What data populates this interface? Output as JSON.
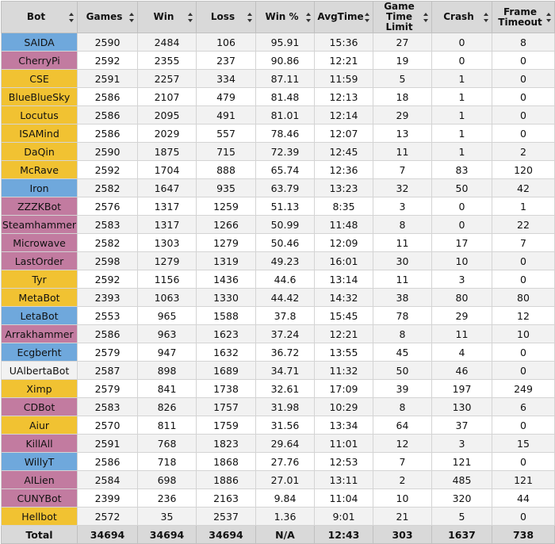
{
  "race_colors": {
    "terran": "#6fa8dc",
    "zerg": "#c27ba0",
    "protoss": "#f1c232"
  },
  "headers": [
    "Bot",
    "Games",
    "Win",
    "Loss",
    "Win %",
    "AvgTime",
    "Game Time Limit",
    "Crash",
    "Frame Timeout"
  ],
  "rows": [
    {
      "bot": "SAIDA",
      "race": "terran",
      "games": "2590",
      "win": "2484",
      "loss": "106",
      "pct": "95.91",
      "avg": "15:36",
      "gtl": "27",
      "crash": "0",
      "fto": "8"
    },
    {
      "bot": "CherryPi",
      "race": "zerg",
      "games": "2592",
      "win": "2355",
      "loss": "237",
      "pct": "90.86",
      "avg": "12:21",
      "gtl": "19",
      "crash": "0",
      "fto": "0"
    },
    {
      "bot": "CSE",
      "race": "protoss",
      "games": "2591",
      "win": "2257",
      "loss": "334",
      "pct": "87.11",
      "avg": "11:59",
      "gtl": "5",
      "crash": "1",
      "fto": "0"
    },
    {
      "bot": "BlueBlueSky",
      "race": "protoss",
      "games": "2586",
      "win": "2107",
      "loss": "479",
      "pct": "81.48",
      "avg": "12:13",
      "gtl": "18",
      "crash": "1",
      "fto": "0"
    },
    {
      "bot": "Locutus",
      "race": "protoss",
      "games": "2586",
      "win": "2095",
      "loss": "491",
      "pct": "81.01",
      "avg": "12:14",
      "gtl": "29",
      "crash": "1",
      "fto": "0"
    },
    {
      "bot": "ISAMind",
      "race": "protoss",
      "games": "2586",
      "win": "2029",
      "loss": "557",
      "pct": "78.46",
      "avg": "12:07",
      "gtl": "13",
      "crash": "1",
      "fto": "0"
    },
    {
      "bot": "DaQin",
      "race": "protoss",
      "games": "2590",
      "win": "1875",
      "loss": "715",
      "pct": "72.39",
      "avg": "12:45",
      "gtl": "11",
      "crash": "1",
      "fto": "2"
    },
    {
      "bot": "McRave",
      "race": "protoss",
      "games": "2592",
      "win": "1704",
      "loss": "888",
      "pct": "65.74",
      "avg": "12:36",
      "gtl": "7",
      "crash": "83",
      "fto": "120"
    },
    {
      "bot": "Iron",
      "race": "terran",
      "games": "2582",
      "win": "1647",
      "loss": "935",
      "pct": "63.79",
      "avg": "13:23",
      "gtl": "32",
      "crash": "50",
      "fto": "42"
    },
    {
      "bot": "ZZZKBot",
      "race": "zerg",
      "games": "2576",
      "win": "1317",
      "loss": "1259",
      "pct": "51.13",
      "avg": "8:35",
      "gtl": "3",
      "crash": "0",
      "fto": "1"
    },
    {
      "bot": "Steamhammer",
      "race": "zerg",
      "games": "2583",
      "win": "1317",
      "loss": "1266",
      "pct": "50.99",
      "avg": "11:48",
      "gtl": "8",
      "crash": "0",
      "fto": "22"
    },
    {
      "bot": "Microwave",
      "race": "zerg",
      "games": "2582",
      "win": "1303",
      "loss": "1279",
      "pct": "50.46",
      "avg": "12:09",
      "gtl": "11",
      "crash": "17",
      "fto": "7"
    },
    {
      "bot": "LastOrder",
      "race": "zerg",
      "games": "2598",
      "win": "1279",
      "loss": "1319",
      "pct": "49.23",
      "avg": "16:01",
      "gtl": "30",
      "crash": "10",
      "fto": "0"
    },
    {
      "bot": "Tyr",
      "race": "protoss",
      "games": "2592",
      "win": "1156",
      "loss": "1436",
      "pct": "44.6",
      "avg": "13:14",
      "gtl": "11",
      "crash": "3",
      "fto": "0"
    },
    {
      "bot": "MetaBot",
      "race": "protoss",
      "games": "2393",
      "win": "1063",
      "loss": "1330",
      "pct": "44.42",
      "avg": "14:32",
      "gtl": "38",
      "crash": "80",
      "fto": "80"
    },
    {
      "bot": "LetaBot",
      "race": "terran",
      "games": "2553",
      "win": "965",
      "loss": "1588",
      "pct": "37.8",
      "avg": "15:45",
      "gtl": "78",
      "crash": "29",
      "fto": "12"
    },
    {
      "bot": "Arrakhammer",
      "race": "zerg",
      "games": "2586",
      "win": "963",
      "loss": "1623",
      "pct": "37.24",
      "avg": "12:21",
      "gtl": "8",
      "crash": "11",
      "fto": "10"
    },
    {
      "bot": "Ecgberht",
      "race": "terran",
      "games": "2579",
      "win": "947",
      "loss": "1632",
      "pct": "36.72",
      "avg": "13:55",
      "gtl": "45",
      "crash": "4",
      "fto": "0"
    },
    {
      "bot": "UAlbertaBot",
      "race": "random",
      "games": "2587",
      "win": "898",
      "loss": "1689",
      "pct": "34.71",
      "avg": "11:32",
      "gtl": "50",
      "crash": "46",
      "fto": "0"
    },
    {
      "bot": "Ximp",
      "race": "protoss",
      "games": "2579",
      "win": "841",
      "loss": "1738",
      "pct": "32.61",
      "avg": "17:09",
      "gtl": "39",
      "crash": "197",
      "fto": "249"
    },
    {
      "bot": "CDBot",
      "race": "zerg",
      "games": "2583",
      "win": "826",
      "loss": "1757",
      "pct": "31.98",
      "avg": "10:29",
      "gtl": "8",
      "crash": "130",
      "fto": "6"
    },
    {
      "bot": "Aiur",
      "race": "protoss",
      "games": "2570",
      "win": "811",
      "loss": "1759",
      "pct": "31.56",
      "avg": "13:34",
      "gtl": "64",
      "crash": "37",
      "fto": "0"
    },
    {
      "bot": "KillAll",
      "race": "zerg",
      "games": "2591",
      "win": "768",
      "loss": "1823",
      "pct": "29.64",
      "avg": "11:01",
      "gtl": "12",
      "crash": "3",
      "fto": "15"
    },
    {
      "bot": "WillyT",
      "race": "terran",
      "games": "2586",
      "win": "718",
      "loss": "1868",
      "pct": "27.76",
      "avg": "12:53",
      "gtl": "7",
      "crash": "121",
      "fto": "0"
    },
    {
      "bot": "AILien",
      "race": "zerg",
      "games": "2584",
      "win": "698",
      "loss": "1886",
      "pct": "27.01",
      "avg": "13:11",
      "gtl": "2",
      "crash": "485",
      "fto": "121"
    },
    {
      "bot": "CUNYBot",
      "race": "zerg",
      "games": "2399",
      "win": "236",
      "loss": "2163",
      "pct": "9.84",
      "avg": "11:04",
      "gtl": "10",
      "crash": "320",
      "fto": "44"
    },
    {
      "bot": "Hellbot",
      "race": "protoss",
      "games": "2572",
      "win": "35",
      "loss": "2537",
      "pct": "1.36",
      "avg": "9:01",
      "gtl": "21",
      "crash": "5",
      "fto": "0"
    }
  ],
  "total": {
    "bot": "Total",
    "games": "34694",
    "win": "34694",
    "loss": "34694",
    "pct": "N/A",
    "avg": "12:43",
    "gtl": "303",
    "crash": "1637",
    "fto": "738"
  }
}
